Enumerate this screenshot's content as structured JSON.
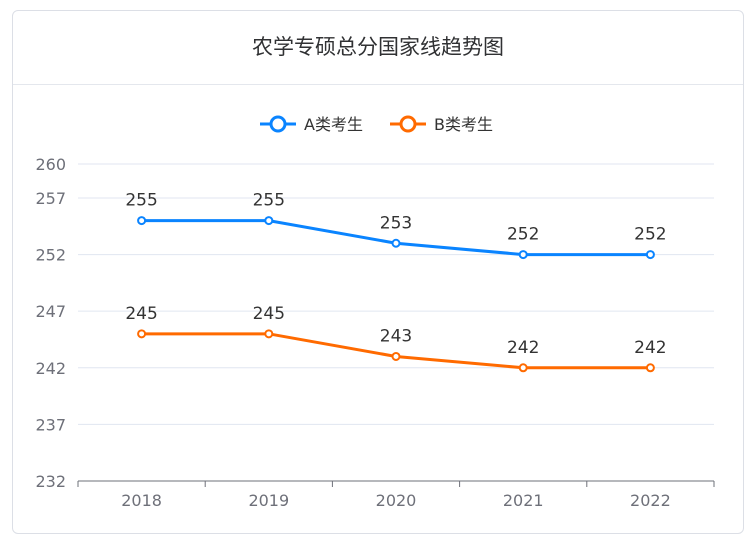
{
  "chart_data": {
    "type": "line",
    "title": "农学专硕总分国家线趋势图",
    "categories": [
      "2018",
      "2019",
      "2020",
      "2021",
      "2022"
    ],
    "series": [
      {
        "name": "A类考生",
        "values": [
          255,
          255,
          253,
          252,
          252
        ],
        "color": "#0a84ff"
      },
      {
        "name": "B类考生",
        "values": [
          245,
          245,
          243,
          242,
          242
        ],
        "color": "#ff6a00"
      }
    ],
    "yticks": [
      232,
      237,
      242,
      247,
      252,
      257,
      260
    ],
    "ylim": [
      232,
      260
    ],
    "grid": true,
    "legend": "top-center",
    "data_labels": true
  }
}
